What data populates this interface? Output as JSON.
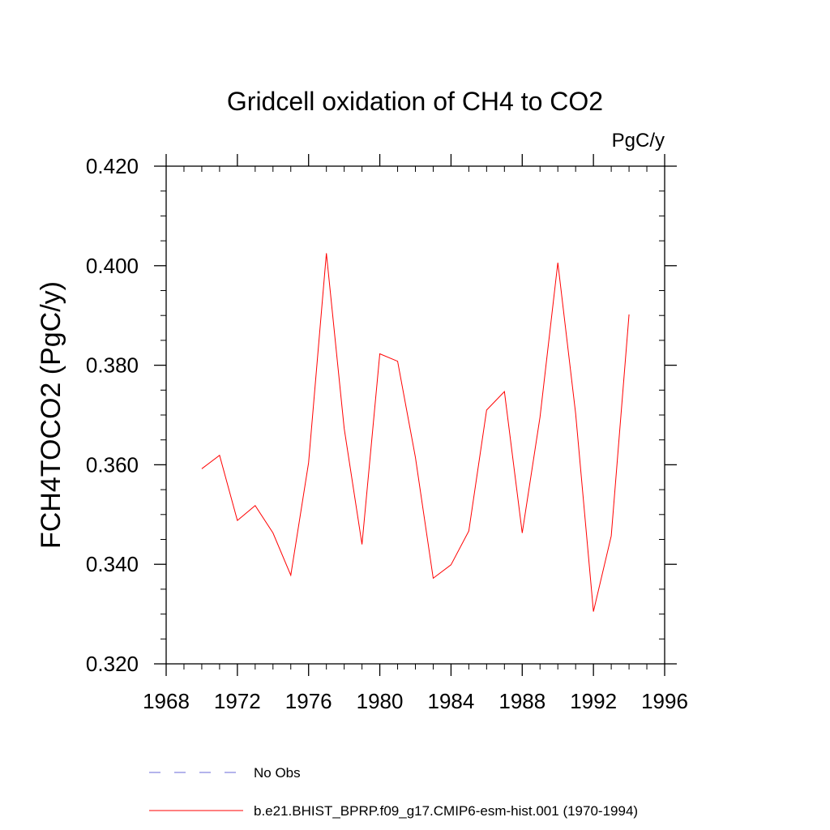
{
  "chart_data": {
    "type": "line",
    "title": "Gridcell oxidation of CH4 to CO2",
    "units_label": "PgC/y",
    "xlabel": "",
    "ylabel": "FCH4TOCO2  (PgC/y)",
    "xlim": [
      1968,
      1996
    ],
    "ylim": [
      0.32,
      0.42
    ],
    "x_ticks": [
      1968,
      1972,
      1976,
      1980,
      1984,
      1988,
      1992,
      1996
    ],
    "x_tick_labels": [
      "1968",
      "1972",
      "1976",
      "1980",
      "1984",
      "1988",
      "1992",
      "1996"
    ],
    "y_ticks": [
      0.32,
      0.34,
      0.36,
      0.38,
      0.4,
      0.42
    ],
    "y_tick_labels": [
      "0.320",
      "0.340",
      "0.360",
      "0.380",
      "0.400",
      "0.420"
    ],
    "x_minor_step": 1,
    "y_minor_step": 0.005,
    "grid": false,
    "legend_position": "bottom",
    "series": [
      {
        "name": "No Obs",
        "color": "#6a6ad8",
        "dash": "dashed",
        "x": [],
        "values": []
      },
      {
        "name": "b.e21.BHIST_BPRP.f09_g17.CMIP6-esm-hist.001 (1970-1994)",
        "color": "#ff0000",
        "dash": "solid",
        "x": [
          1970,
          1971,
          1972,
          1973,
          1974,
          1975,
          1976,
          1977,
          1978,
          1979,
          1980,
          1981,
          1982,
          1983,
          1984,
          1985,
          1986,
          1987,
          1988,
          1989,
          1990,
          1991,
          1992,
          1993,
          1994
        ],
        "values": [
          0.3592,
          0.3619,
          0.3488,
          0.3518,
          0.3463,
          0.3378,
          0.3604,
          0.4025,
          0.3673,
          0.344,
          0.3823,
          0.3808,
          0.3615,
          0.3372,
          0.3399,
          0.3467,
          0.371,
          0.3747,
          0.3463,
          0.3696,
          0.4006,
          0.3703,
          0.3305,
          0.3457,
          0.3902
        ]
      }
    ]
  }
}
